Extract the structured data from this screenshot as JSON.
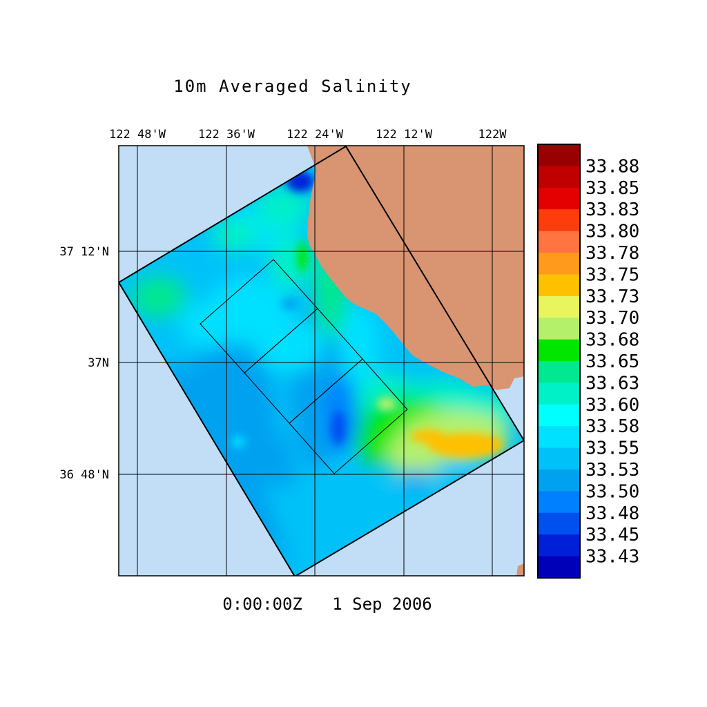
{
  "title": "10m Averaged Salinity",
  "timestamp": "0:00:00Z   1 Sep 2006",
  "axes": {
    "lon_ticks": [
      "122 48'W",
      "122 36'W",
      "122 24'W",
      "122 12'W",
      "122W"
    ],
    "lat_ticks": [
      "37 12'N",
      "37N",
      "36 48'N"
    ]
  },
  "colors": {
    "ocean_outside": "#c2def6",
    "land": "#d99472",
    "grid": "#000000"
  },
  "legend": {
    "labels": [
      "33.88",
      "33.85",
      "33.83",
      "33.80",
      "33.78",
      "33.75",
      "33.73",
      "33.70",
      "33.68",
      "33.65",
      "33.63",
      "33.60",
      "33.58",
      "33.55",
      "33.53",
      "33.50",
      "33.48",
      "33.45",
      "33.43"
    ],
    "colors": [
      "#990000",
      "#c00000",
      "#e40000",
      "#ff3c0c",
      "#ff7440",
      "#ff9a1c",
      "#ffc000",
      "#e8f55c",
      "#b5f06a",
      "#00e600",
      "#00e890",
      "#00f0c8",
      "#00ffff",
      "#00e0ff",
      "#00c2f8",
      "#00a2f0",
      "#0080ff",
      "#0050f0",
      "#0020d8",
      "#0000b8"
    ]
  }
}
